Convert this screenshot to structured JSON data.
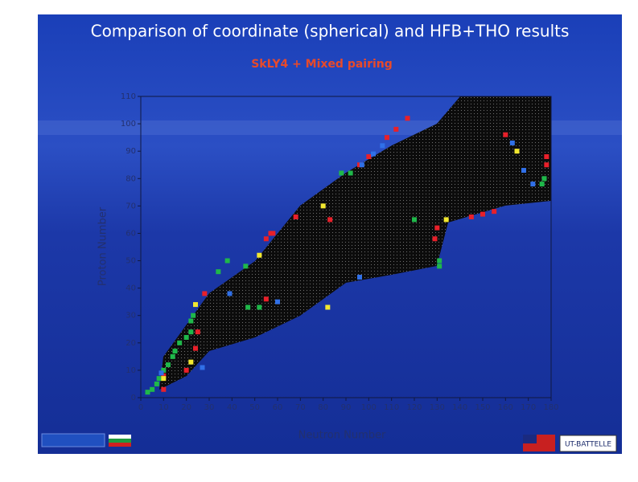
{
  "chart_data": {
    "type": "scatter",
    "title": "Comparison of coordinate (spherical) and HFB+THO results",
    "subtitle": "SkLY4 + Mixed pairing",
    "x_label": "Neutron Number",
    "y_label": "Proton Number",
    "xlim": [
      0,
      180
    ],
    "xticks": [
      0,
      10,
      20,
      30,
      40,
      50,
      60,
      70,
      80,
      90,
      100,
      110,
      120,
      130,
      140,
      150,
      160,
      170,
      180
    ],
    "ylim": [
      0,
      110
    ],
    "yticks": [
      0,
      10,
      20,
      30,
      40,
      50,
      60,
      70,
      80,
      90,
      100,
      110
    ],
    "series": [
      {
        "color": "#1fb84a",
        "x": [
          3,
          5,
          7,
          8,
          10,
          12,
          14,
          15,
          17,
          20,
          22,
          22,
          23,
          34,
          38,
          46,
          52,
          47,
          88,
          92,
          120,
          131,
          131,
          177,
          176
        ],
        "values": [
          2,
          3,
          5,
          7,
          10,
          12,
          15,
          17,
          20,
          22,
          24,
          28,
          30,
          46,
          50,
          48,
          33,
          33,
          82,
          82,
          65,
          50,
          48,
          80,
          78
        ]
      },
      {
        "color": "#e8202a",
        "x": [
          10,
          10,
          20,
          24,
          25,
          28,
          55,
          57,
          58,
          55,
          68,
          83,
          96,
          100,
          108,
          112,
          117,
          130,
          129,
          145,
          150,
          155,
          178,
          178,
          160
        ],
        "values": [
          8,
          3,
          10,
          18,
          24,
          38,
          58,
          60,
          60,
          36,
          66,
          65,
          85,
          88,
          95,
          98,
          102,
          62,
          58,
          66,
          67,
          68,
          88,
          85,
          96
        ]
      },
      {
        "color": "#3070e8",
        "x": [
          9,
          27,
          39,
          97,
          102,
          106,
          168,
          172,
          163,
          60,
          96
        ],
        "values": [
          9,
          11,
          38,
          85,
          89,
          92,
          83,
          78,
          93,
          35,
          44
        ]
      },
      {
        "color": "#f2e830",
        "x": [
          10,
          22,
          24,
          52,
          80,
          82,
          134,
          165
        ],
        "values": [
          7,
          13,
          34,
          52,
          70,
          33,
          65,
          90
        ]
      }
    ]
  },
  "footer": {
    "logo": "UT-BATTELLE"
  }
}
